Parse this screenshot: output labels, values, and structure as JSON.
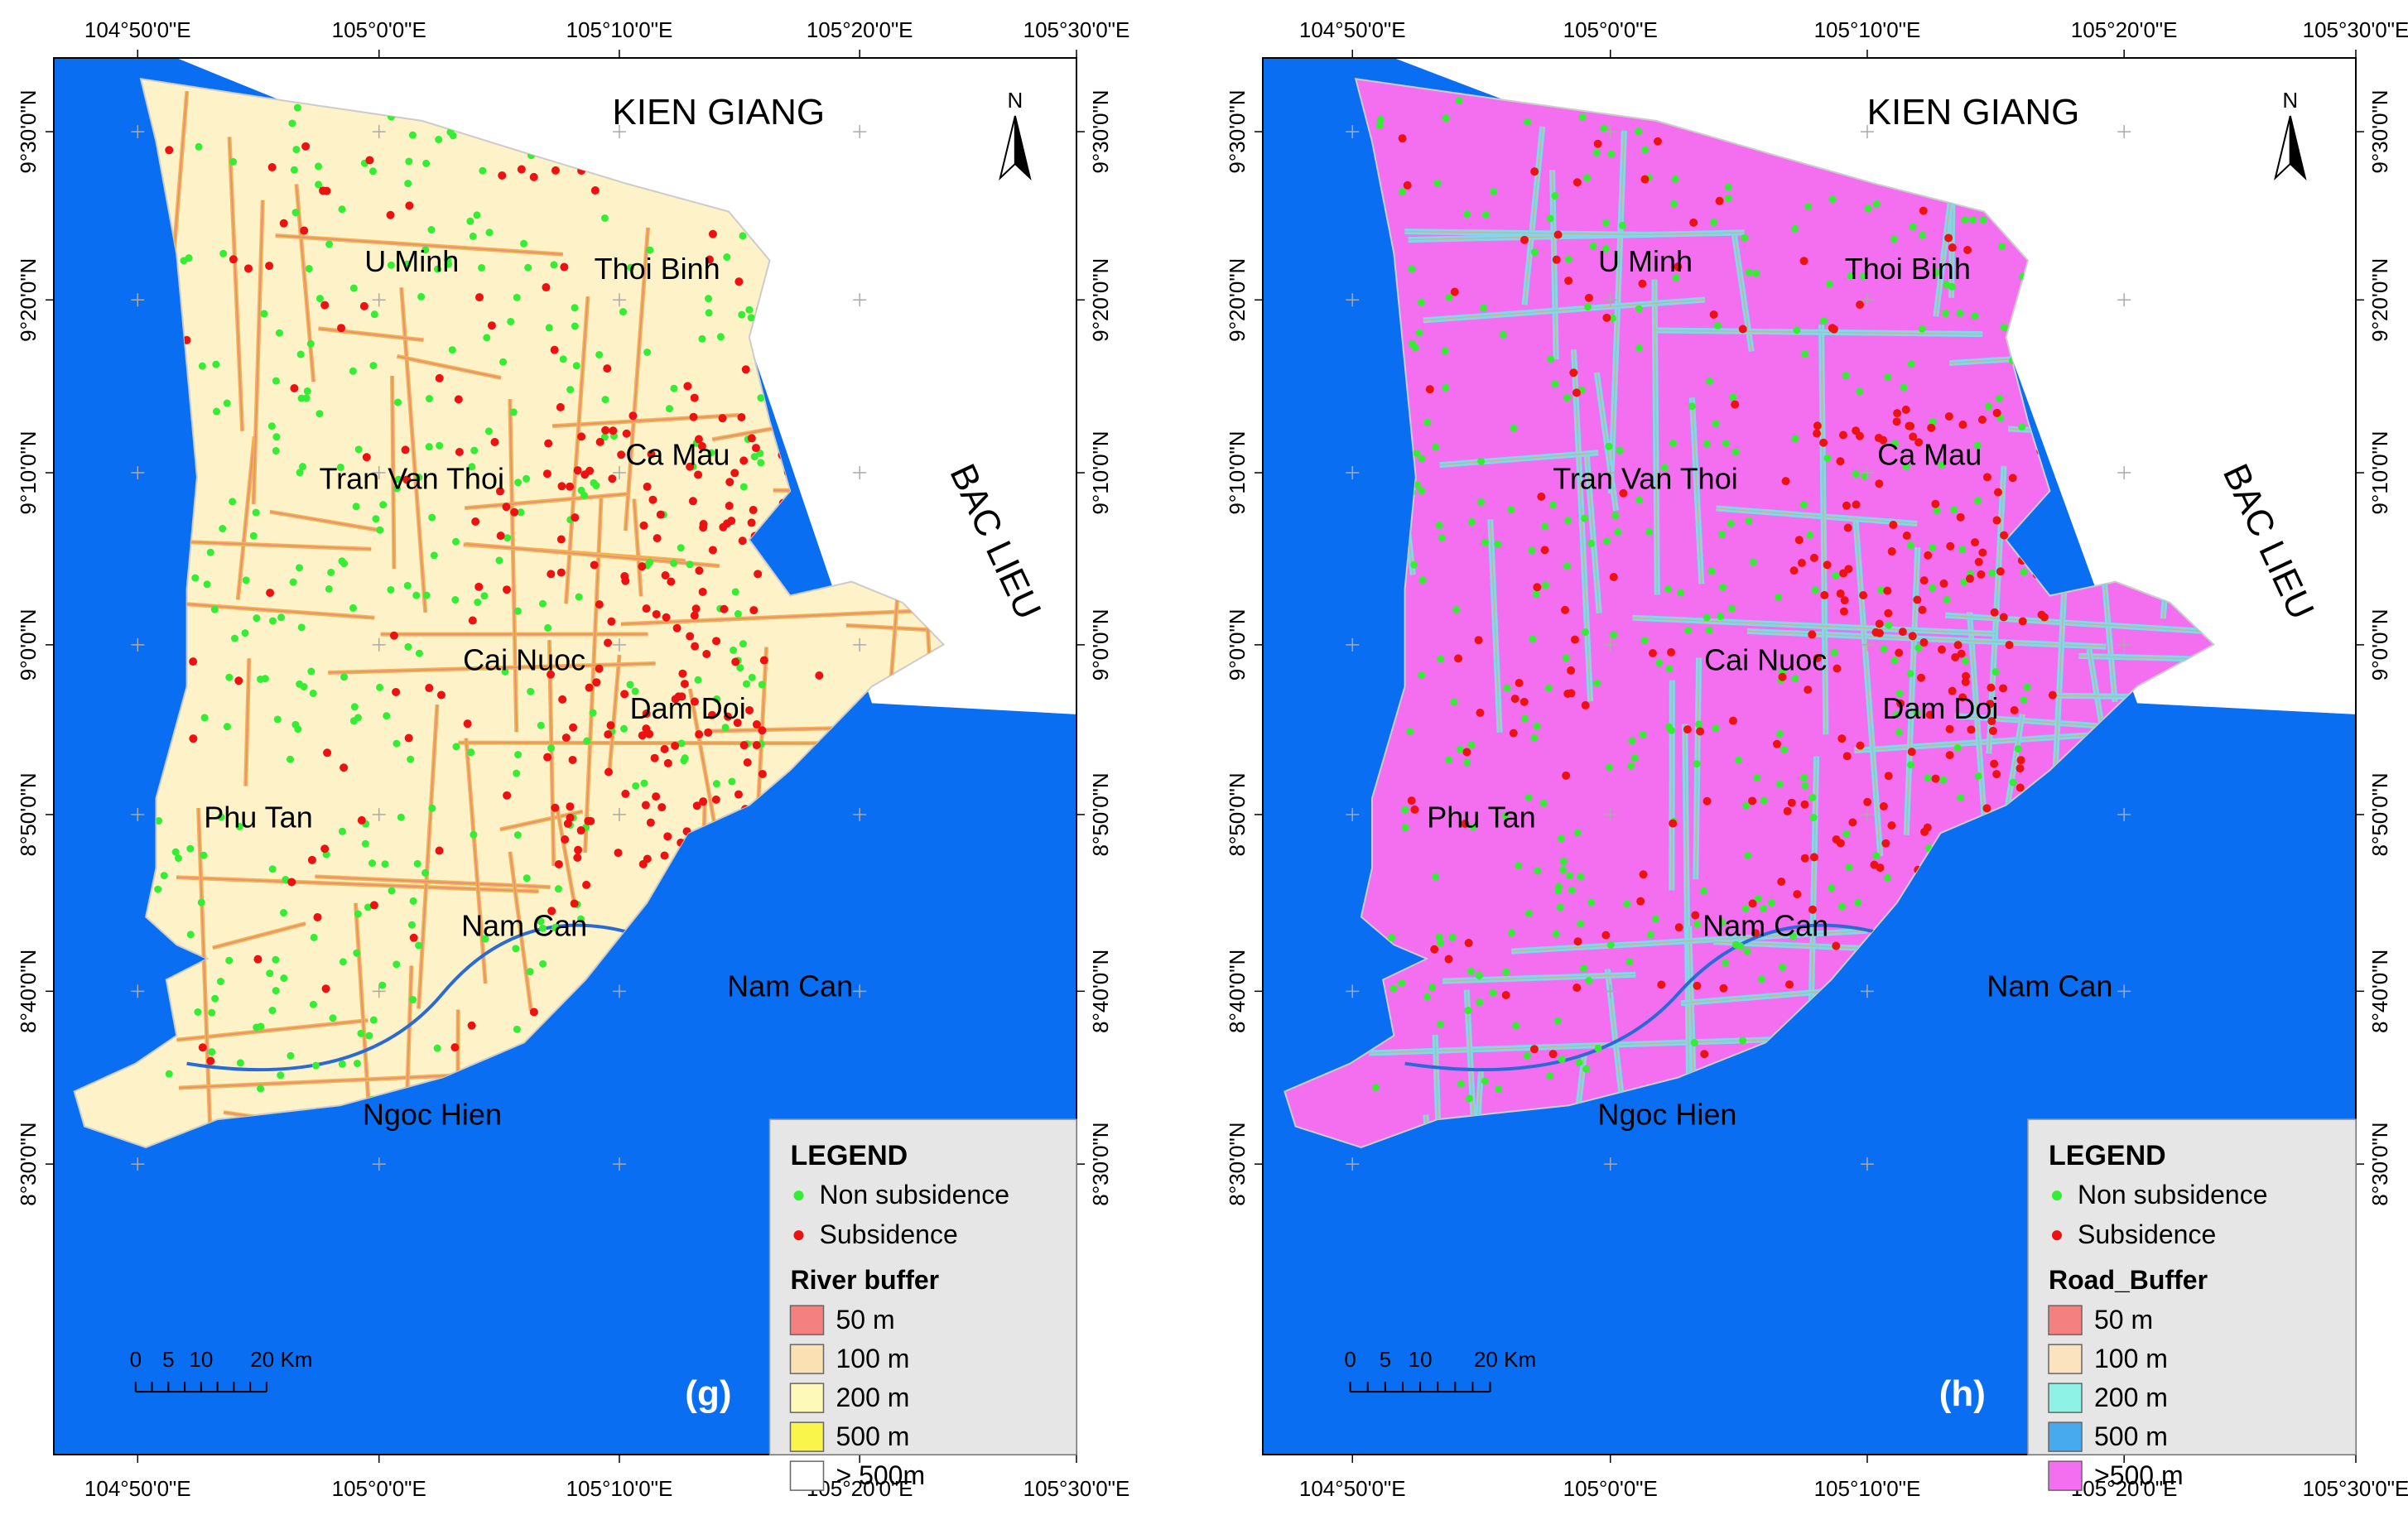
{
  "panels": [
    {
      "id": "g",
      "panel_label": "(g)",
      "region_north": "KIEN GIANG",
      "region_east": "BAC LIEU",
      "districts": [
        "U Minh",
        "Thoi Binh",
        "Ca Mau",
        "Tran Van Thoi",
        "Cai Nuoc",
        "Dam Doi",
        "Phu Tan",
        "Nam Can",
        "Nam Can",
        "Ngoc Hien"
      ],
      "north_arrow": "N",
      "lon_labels": [
        "104°50'0\"E",
        "105°0'0\"E",
        "105°10'0\"E",
        "105°20'0\"E",
        "105°30'0\"E"
      ],
      "lat_labels": [
        "9°30'0\"N",
        "9°20'0\"N",
        "9°10'0\"N",
        "9°0'0\"N",
        "8°50'0\"N",
        "8°40'0\"N",
        "8°30'0\"N"
      ],
      "scale": {
        "ticks": [
          "0",
          "5",
          "10",
          "20 Km"
        ]
      },
      "legend": {
        "title": "LEGEND",
        "points": [
          {
            "label": "Non subsidence",
            "color": "#33ee33"
          },
          {
            "label": "Subsidence",
            "color": "#ee1111"
          }
        ],
        "buffer_title": "River buffer",
        "classes": [
          {
            "label": "50 m",
            "color": "#f48080"
          },
          {
            "label": "100 m",
            "color": "#fbe0b4"
          },
          {
            "label": "200 m",
            "color": "#fdf9b8"
          },
          {
            "label": "500 m",
            "color": "#f9f54a"
          },
          {
            "label": "> 500m",
            "color": "#ffffff"
          }
        ]
      },
      "land_color": "#fdf2c8",
      "sea_color": "#0a6ef2"
    },
    {
      "id": "h",
      "panel_label": "(h)",
      "region_north": "KIEN GIANG",
      "region_east": "BAC LIEU",
      "districts": [
        "U Minh",
        "Thoi Binh",
        "Ca Mau",
        "Tran Van Thoi",
        "Cai Nuoc",
        "Dam Doi",
        "Phu Tan",
        "Nam Can",
        "Nam Can",
        "Ngoc Hien"
      ],
      "north_arrow": "N",
      "lon_labels": [
        "104°50'0\"E",
        "105°0'0\"E",
        "105°10'0\"E",
        "105°20'0\"E",
        "105°30'0\"E"
      ],
      "lat_labels": [
        "9°30'0\"N",
        "9°20'0\"N",
        "9°10'0\"N",
        "9°0'0\"N",
        "8°50'0\"N",
        "8°40'0\"N",
        "8°30'0\"N"
      ],
      "scale": {
        "ticks": [
          "0",
          "5",
          "10",
          "20 Km"
        ]
      },
      "legend": {
        "title": "LEGEND",
        "points": [
          {
            "label": "Non subsidence",
            "color": "#33ee33"
          },
          {
            "label": "Subsidence",
            "color": "#ee1111"
          }
        ],
        "buffer_title": "Road_Buffer",
        "classes": [
          {
            "label": "50 m",
            "color": "#f48080"
          },
          {
            "label": "100 m",
            "color": "#fbe3c0"
          },
          {
            "label": "200 m",
            "color": "#8ff2e6"
          },
          {
            "label": "500 m",
            "color": "#47a9ee"
          },
          {
            "label": ">500 m",
            "color": "#f46ff0"
          }
        ]
      },
      "land_color": "#f46ff0",
      "sea_color": "#0a6ef2"
    }
  ]
}
